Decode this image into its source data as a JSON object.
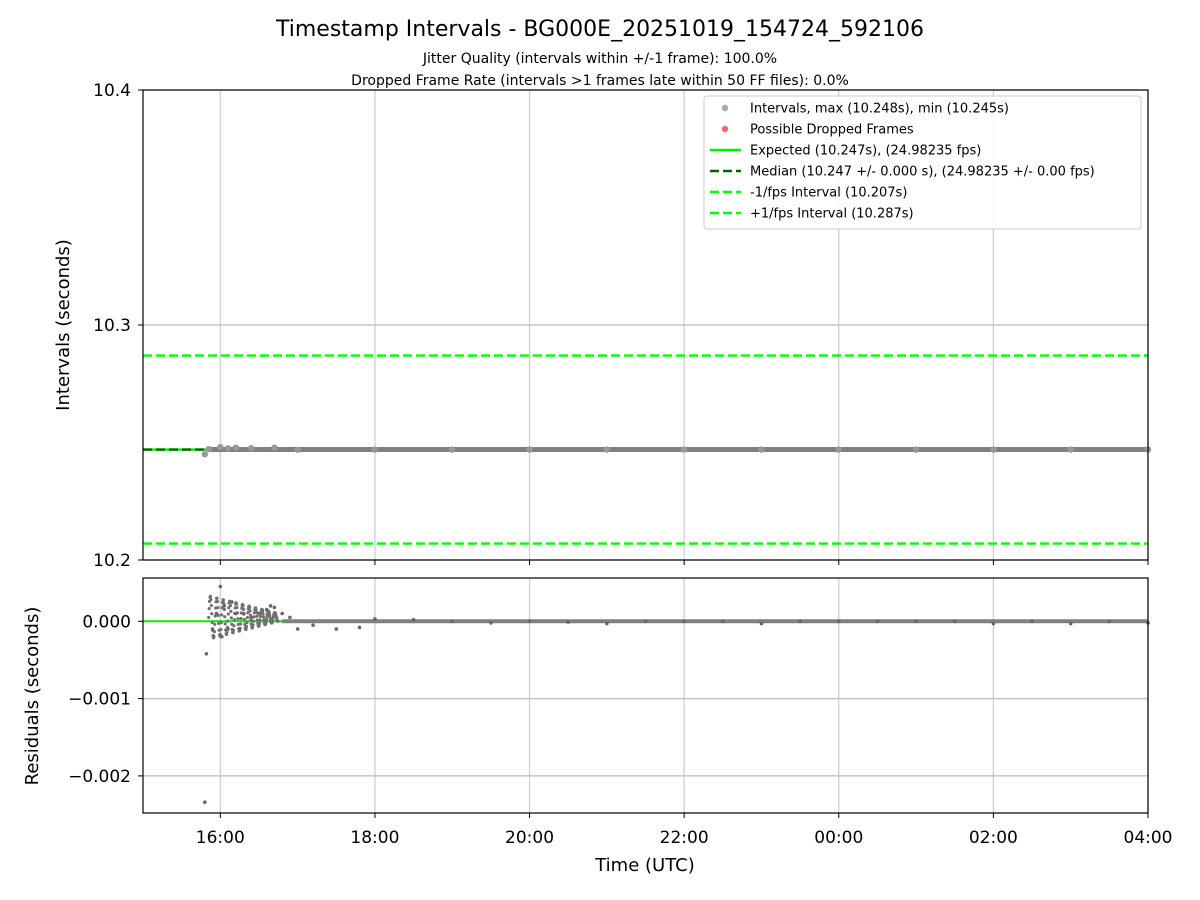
{
  "chart_data": [
    {
      "type": "scatter",
      "panel": "intervals",
      "title": "Timestamp Intervals - BG000E_20251019_154724_592106",
      "subtitle_lines": [
        "Jitter Quality (intervals within +/-1 frame): 100.0%",
        "Dropped Frame Rate (intervals >1 frames late within 50 FF files): 0.0%"
      ],
      "ylabel": "Intervals (seconds)",
      "ylim": [
        10.2,
        10.4
      ],
      "yticks": [
        10.2,
        10.3,
        10.4
      ],
      "ytick_labels": [
        "10.2",
        "10.3",
        "10.4"
      ],
      "grid": true,
      "legend_position": "top-right",
      "legend": [
        {
          "label": "Intervals, max (10.248s), min (10.245s)",
          "kind": "marker",
          "color": "#a9a9a9"
        },
        {
          "label": "Possible Dropped Frames",
          "kind": "marker",
          "color": "#ff6666"
        },
        {
          "label": "Expected (10.247s), (24.98235 fps)",
          "kind": "solid",
          "color": "#00ee00"
        },
        {
          "label": "Median (10.247 +/- 0.000 s), (24.98235 +/- 0.00 fps)",
          "kind": "dashed",
          "color": "#006400"
        },
        {
          "label": "-1/fps Interval (10.207s)",
          "kind": "dashed",
          "color": "#00ff00"
        },
        {
          "label": "+1/fps Interval (10.287s)",
          "kind": "dashed",
          "color": "#00ff00"
        }
      ],
      "reference_lines": {
        "expected": 10.247,
        "median": 10.247,
        "minus_one_fps": 10.207,
        "plus_one_fps": 10.287
      },
      "interval_min": 10.245,
      "interval_max": 10.248,
      "series": [
        {
          "name": "Intervals",
          "x_hours": [
            15.8,
            15.85,
            16.0,
            16.1,
            16.2,
            16.4,
            16.7,
            17.0,
            18.0,
            19.0,
            20.0,
            21.0,
            22.0,
            23.0,
            24.0,
            25.0,
            26.0,
            27.0,
            28.0
          ],
          "y": [
            10.245,
            10.2472,
            10.248,
            10.2475,
            10.2478,
            10.2476,
            10.2478,
            10.2469,
            10.247,
            10.247,
            10.247,
            10.247,
            10.247,
            10.247,
            10.247,
            10.247,
            10.247,
            10.247,
            10.247
          ]
        }
      ]
    },
    {
      "type": "scatter",
      "panel": "residuals",
      "xlabel": "Time (UTC)",
      "ylabel": "Residuals (seconds)",
      "ylim": [
        -0.00248,
        0.00056
      ],
      "yticks": [
        0.0,
        -0.001,
        -0.002
      ],
      "ytick_labels": [
        "0.000",
        "−0.001",
        "−0.002"
      ],
      "xlim_hours": [
        15.0,
        28.0
      ],
      "xticks_hours": [
        16,
        18,
        20,
        22,
        24,
        26,
        28
      ],
      "xtick_labels": [
        "16:00",
        "18:00",
        "20:00",
        "22:00",
        "00:00",
        "02:00",
        "04:00"
      ],
      "grid": true,
      "series": [
        {
          "name": "Residuals",
          "x_hours": [
            15.8,
            15.82,
            15.9,
            15.95,
            16.0,
            16.02,
            16.05,
            16.1,
            16.15,
            16.2,
            16.25,
            16.3,
            16.4,
            16.5,
            16.6,
            16.65,
            16.7,
            16.8,
            16.9,
            17.0,
            17.2,
            17.5,
            17.8,
            18.0,
            18.5,
            19.0,
            19.5,
            20.0,
            20.5,
            21.0,
            21.5,
            22.0,
            22.5,
            23.0,
            23.5,
            24.0,
            24.5,
            25.0,
            25.5,
            26.0,
            26.5,
            27.0,
            27.5,
            28.0
          ],
          "y": [
            -0.00234,
            -0.00042,
            -0.0001,
            0.0001,
            0.00045,
            -0.0002,
            0.0002,
            -0.0001,
            0.00025,
            0.0001,
            -0.0001,
            0.0001,
            5e-05,
            0.0001,
            0.00015,
            0.0002,
            0.00018,
            0.0001,
            5e-05,
            -0.0001,
            -5e-05,
            -0.0001,
            -8e-05,
            3e-05,
            2e-05,
            0.0,
            -2e-05,
            0.0,
            -1e-05,
            -3e-05,
            0.0,
            0.0,
            0.0,
            -3e-05,
            0.0,
            0.0,
            0.0,
            0.0,
            0.0,
            -3e-05,
            0.0,
            -3e-05,
            0.0,
            -2e-05
          ]
        }
      ],
      "reference_line": {
        "value": 0.0,
        "color": "#00ee00"
      }
    }
  ]
}
